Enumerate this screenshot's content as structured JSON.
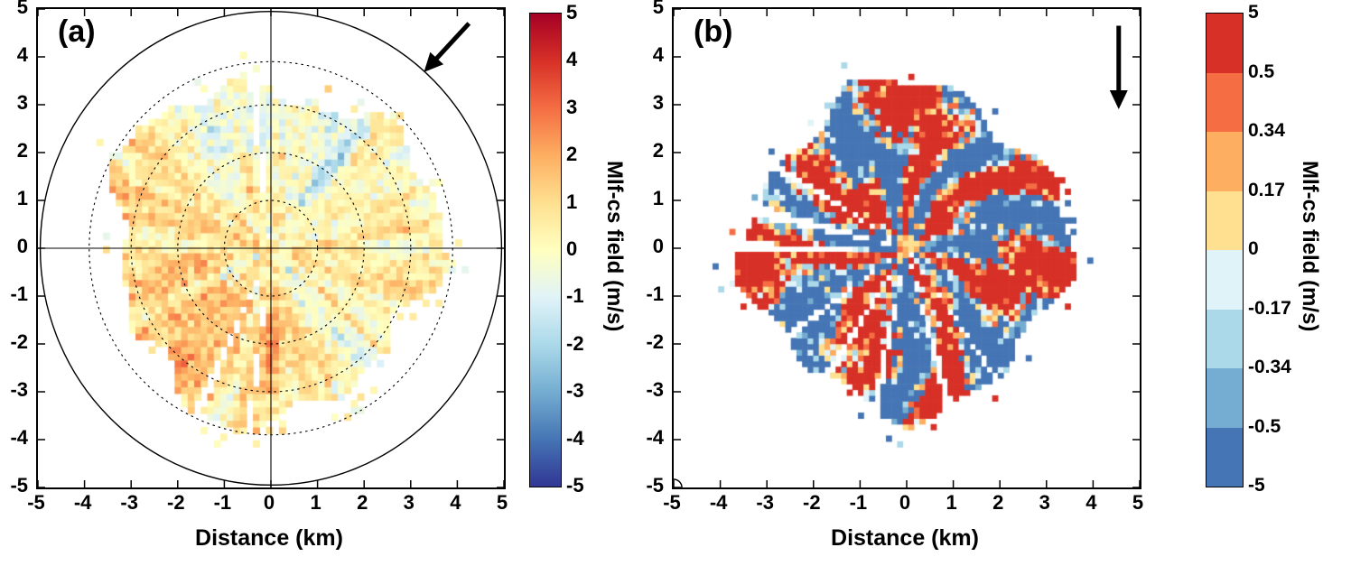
{
  "figure": {
    "background": "#ffffff",
    "text_color": "#000000"
  },
  "chart_data": [
    {
      "type": "heatmap",
      "panel": "a",
      "title": "(a)",
      "xlabel": "Distance (km)",
      "xlim": [
        -5,
        5
      ],
      "ylim": [
        -5,
        5
      ],
      "x_ticks": [
        "-5",
        "-4",
        "-3",
        "-2",
        "-1",
        "0",
        "1",
        "2",
        "3",
        "4",
        "5"
      ],
      "y_ticks": [
        "5",
        "4",
        "3",
        "2",
        "1",
        "0",
        "-1",
        "-2",
        "-3",
        "-4",
        "-5"
      ],
      "units": "m/s",
      "colorbar": {
        "label": "Mlf-cs field (m/s)",
        "type": "continuous",
        "vmin": -5,
        "vmax": 5,
        "tick_labels": [
          "5",
          "4",
          "3",
          "2",
          "1",
          "0",
          "-1",
          "-2",
          "-3",
          "-4",
          "-5"
        ],
        "stops": [
          {
            "v": -5,
            "c": "#313695"
          },
          {
            "v": -4,
            "c": "#4575b4"
          },
          {
            "v": -3,
            "c": "#74add1"
          },
          {
            "v": -2,
            "c": "#abd9e9"
          },
          {
            "v": -1,
            "c": "#e0f3f8"
          },
          {
            "v": 0,
            "c": "#ffffbf"
          },
          {
            "v": 1,
            "c": "#fee090"
          },
          {
            "v": 2,
            "c": "#fdae61"
          },
          {
            "v": 3,
            "c": "#f46d43"
          },
          {
            "v": 4,
            "c": "#d73027"
          },
          {
            "v": 5,
            "c": "#a50026"
          }
        ]
      },
      "range_rings_km": {
        "dashed": [
          1,
          2,
          3,
          3.9
        ],
        "solid": 4.95
      },
      "crosshair": true,
      "arrow": {
        "x1": 0.925,
        "y1": 0.03,
        "x2": 0.835,
        "y2": 0.125
      },
      "field": {
        "description": "Noisy Doppler-lidar-like radial field out to ~3.5 km; mostly 0 to 2 m/s (yellow/orange) with scattered negative (blue) streaks and a few white missing-ray wedges",
        "max_radius_km": 3.5,
        "cell_km": 0.14,
        "seed": 7,
        "gap_wedges_deg": [
          [
            95,
            98
          ],
          [
            244,
            247
          ],
          [
            262,
            264
          ]
        ]
      }
    },
    {
      "type": "heatmap",
      "panel": "b",
      "title": "(b)",
      "xlabel": "Distance (km)",
      "xlim": [
        -5,
        5
      ],
      "ylim": [
        -5,
        5
      ],
      "x_ticks": [
        "-5",
        "-4",
        "-3",
        "-2",
        "-1",
        "0",
        "1",
        "2",
        "3",
        "4",
        "5"
      ],
      "y_ticks": [
        "5",
        "4",
        "3",
        "2",
        "1",
        "0",
        "-1",
        "-2",
        "-3",
        "-4",
        "-5"
      ],
      "units": "m/s",
      "colorbar": {
        "label": "Mlf-cs field (m/s)",
        "type": "discrete",
        "boundary_labels": [
          "5",
          "0.5",
          "0.34",
          "0.17",
          "0",
          "-0.17",
          "-0.34",
          "-0.5",
          "-5"
        ],
        "boundaries": [
          5,
          0.5,
          0.34,
          0.17,
          0,
          -0.17,
          -0.34,
          -0.5,
          -5
        ],
        "colors_top_to_bottom": [
          "#d73027",
          "#f46d43",
          "#fdae61",
          "#fee090",
          "#e0f3f8",
          "#abd9e9",
          "#74add1",
          "#4575b4"
        ]
      },
      "range_rings_km": {
        "dashed": [],
        "solid": null
      },
      "crosshair": false,
      "arrow": {
        "x1": 0.955,
        "y1": 0.035,
        "x2": 0.955,
        "y2": 0.2
      },
      "field": {
        "description": "Thresholded version of the field dominated by saturated red (> +0.5 m/s) and blue (< -0.5 m/s) radial streaks with white missing-ray wedges",
        "max_radius_km": 3.35,
        "cell_km": 0.12,
        "seed": 13,
        "gap_wedges_deg": [
          [
            147,
            150
          ],
          [
            164,
            169
          ],
          [
            178,
            181
          ],
          [
            214,
            217
          ],
          [
            236,
            239
          ],
          [
            257,
            260
          ],
          [
            284,
            287
          ],
          [
            304,
            306
          ]
        ]
      }
    }
  ]
}
